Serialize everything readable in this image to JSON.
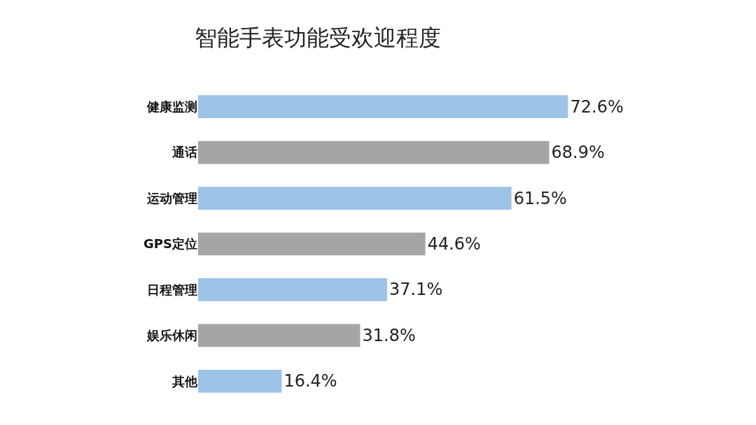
{
  "chart_data": {
    "type": "bar",
    "orientation": "horizontal",
    "title": "智能手表功能受欢迎程度",
    "categories": [
      "健康监测",
      "通话",
      "运动管理",
      "GPS定位",
      "日程管理",
      "娱乐休闲",
      "其他"
    ],
    "values": [
      72.6,
      68.9,
      61.5,
      44.6,
      37.1,
      31.8,
      16.4
    ],
    "value_labels": [
      "72.6%",
      "68.9%",
      "61.5%",
      "44.6%",
      "37.1%",
      "31.8%",
      "16.4%"
    ],
    "colors": [
      "#9dc3e6",
      "#a5a5a5",
      "#9dc3e6",
      "#a5a5a5",
      "#9dc3e6",
      "#a5a5a5",
      "#9dc3e6"
    ],
    "grid": false
  }
}
